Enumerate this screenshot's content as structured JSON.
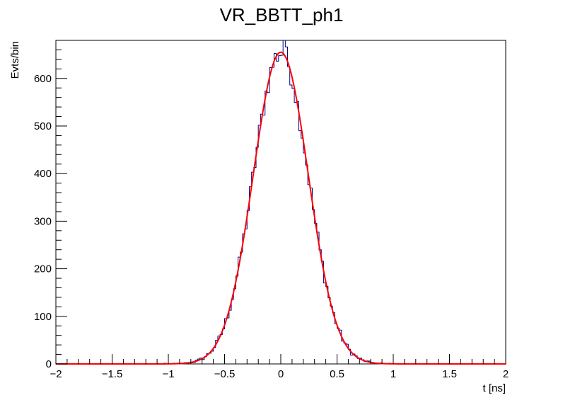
{
  "chart_data": {
    "type": "histogram",
    "title": "VR_BBTT_ph1",
    "xlabel": "t [ns]",
    "ylabel": "Evts/bin",
    "xlim": [
      -2,
      2
    ],
    "ylim": [
      0,
      680
    ],
    "x_ticks": [
      {
        "value": -2,
        "label": "−2"
      },
      {
        "value": -1.5,
        "label": "−1.5"
      },
      {
        "value": -1,
        "label": "−1"
      },
      {
        "value": -0.5,
        "label": "−0.5"
      },
      {
        "value": 0,
        "label": "0"
      },
      {
        "value": 0.5,
        "label": "0.5"
      },
      {
        "value": 1,
        "label": "1"
      },
      {
        "value": 1.5,
        "label": "1.5"
      },
      {
        "value": 2,
        "label": "2"
      }
    ],
    "y_ticks": [
      {
        "value": 0,
        "label": "0"
      },
      {
        "value": 100,
        "label": "100"
      },
      {
        "value": 200,
        "label": "200"
      },
      {
        "value": 300,
        "label": "300"
      },
      {
        "value": 400,
        "label": "400"
      },
      {
        "value": 500,
        "label": "500"
      },
      {
        "value": 600,
        "label": "600"
      }
    ],
    "grid": false,
    "series": [
      {
        "kind": "histogram",
        "color": "#000080",
        "bin_width": 0.02,
        "bin_range": [
          -2,
          2
        ],
        "nonzero_range": [
          -1.1,
          1.0
        ],
        "peak_value": 680,
        "peak_x": 0.02
      },
      {
        "kind": "gaussian-fit",
        "color": "#ff0000",
        "amplitude": 655,
        "mean": 0.0,
        "sigma": 0.245
      }
    ]
  }
}
